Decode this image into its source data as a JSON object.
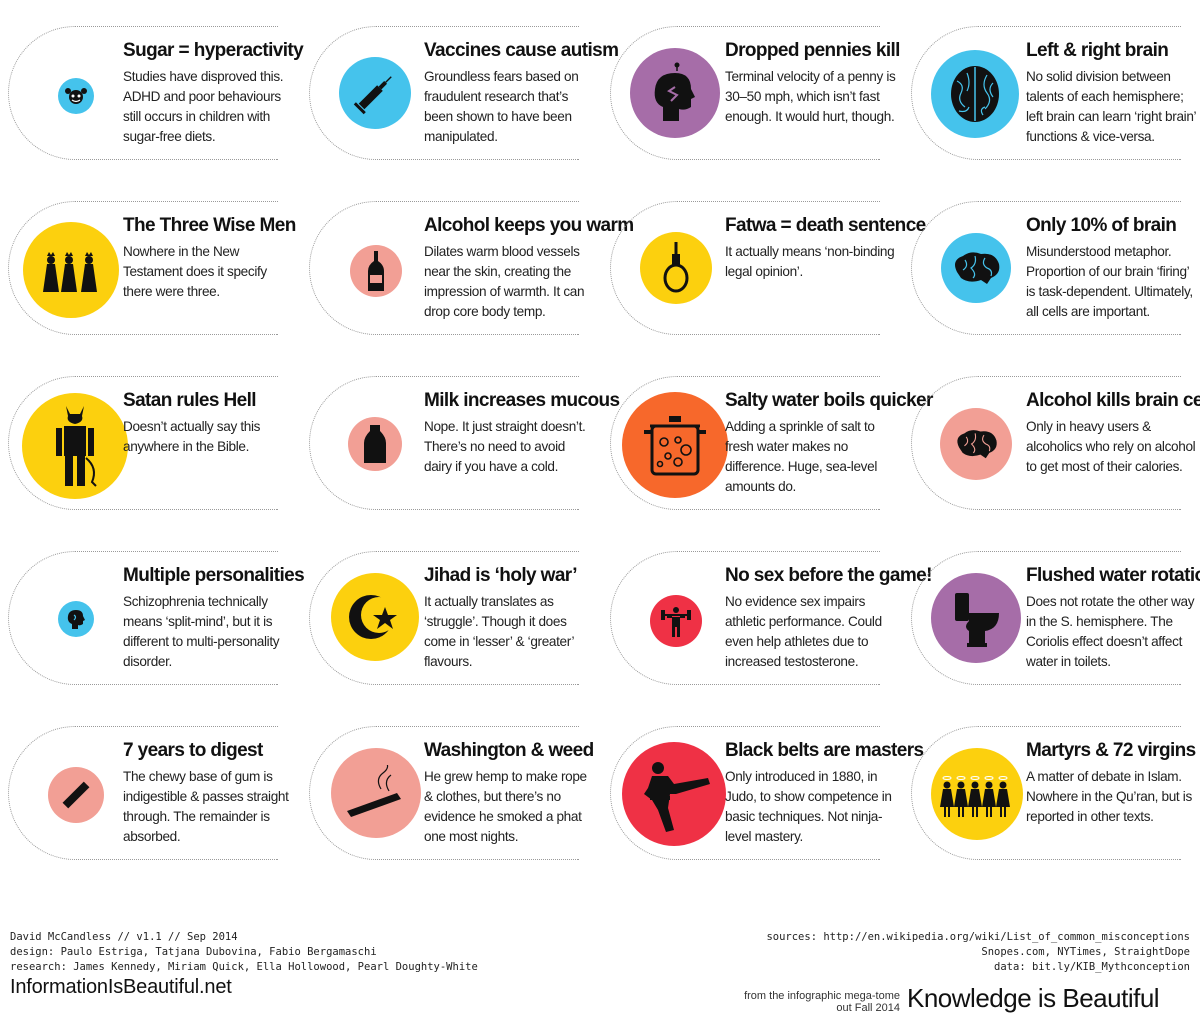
{
  "colors": {
    "blue": "#45c3ec",
    "purple": "#a66da8",
    "yellow": "#fcd00e",
    "pink": "#f29f95",
    "orange": "#f7682b",
    "red": "#ef3145"
  },
  "cards": [
    {
      "title": "Sugar = hyperactivity",
      "text": "Studies have disproved this. ADHD and poor behaviours still occurs in children with sugar-free diets.",
      "icon": "hyperactive-face-icon",
      "color": "#45c3ec"
    },
    {
      "title": "Vaccines cause autism",
      "text": "Groundless fears based on fraudulent research that’s been shown to have been manipulated.",
      "icon": "syringe-icon",
      "color": "#45c3ec"
    },
    {
      "title": "Dropped pennies kill",
      "text": "Terminal velocity of a penny is 30–50 mph, which isn’t fast enough. It would hurt, though.",
      "icon": "head-penny-icon",
      "color": "#a66da8"
    },
    {
      "title": "Left & right brain",
      "text": "No solid division between talents of each hemisphere; left brain can learn ‘right brain’ functions & vice-versa.",
      "icon": "brain-top-icon",
      "color": "#45c3ec"
    },
    {
      "title": "The Three Wise Men",
      "text": "Nowhere in the New Testament does it specify there were three.",
      "icon": "three-kings-icon",
      "color": "#fcd00e"
    },
    {
      "title": "Alcohol keeps you warm",
      "text": "Dilates warm blood vessels near the skin, creating the impression of warmth. It can drop core body temp.",
      "icon": "bottle-icon",
      "color": "#f29f95"
    },
    {
      "title": "Fatwa = death sentence",
      "text": "It actually means ‘non-binding legal opinion’.",
      "icon": "noose-icon",
      "color": "#fcd00e"
    },
    {
      "title": "Only 10% of brain",
      "text": "Misunderstood metaphor. Proportion of our brain ‘firing’ is task-dependent. Ultimately, all cells are important.",
      "icon": "brain-side-icon",
      "color": "#45c3ec"
    },
    {
      "title": "Satan rules Hell",
      "text": "Doesn’t actually say this anywhere in the Bible.",
      "icon": "devil-icon",
      "color": "#fcd00e"
    },
    {
      "title": "Milk increases mucous",
      "text": "Nope. It just straight doesn’t. There’s no need to avoid dairy if you have a cold.",
      "icon": "milk-bottle-icon",
      "color": "#f29f95"
    },
    {
      "title": "Salty water boils quicker",
      "text": "Adding a sprinkle of salt to fresh water makes no difference. Huge, sea-level amounts do.",
      "icon": "boiling-pot-icon",
      "color": "#f7682b"
    },
    {
      "title": "Alcohol kills brain cells",
      "text": "Only in heavy users & alcoholics who rely on alcohol to get most of their calories.",
      "icon": "brain-icon",
      "color": "#f29f95"
    },
    {
      "title": "Multiple personalities",
      "text": "Schizophrenia technically means ‘split-mind’, but it is different to multi-personality disorder.",
      "icon": "head-profiles-icon",
      "color": "#45c3ec"
    },
    {
      "title": "Jihad is ‘holy war’",
      "text": "It actually translates as ‘struggle’. Though it does come in ‘lesser’ & ‘greater’ flavours.",
      "icon": "crescent-star-icon",
      "color": "#fcd00e"
    },
    {
      "title": "No sex before the game!",
      "text": "No evidence sex impairs athletic performance. Could even help athletes due to increased testosterone.",
      "icon": "weightlifter-icon",
      "color": "#ef3145"
    },
    {
      "title": "Flushed water rotation",
      "text": "Does not rotate the other way in the S. hemisphere. The Coriolis effect doesn’t affect water in toilets.",
      "icon": "toilet-icon",
      "color": "#a66da8"
    },
    {
      "title": "7 years to digest",
      "text": "The chewy base of gum is indigestible & passes straight through. The remainder is absorbed.",
      "icon": "gum-stick-icon",
      "color": "#f29f95"
    },
    {
      "title": "Washington & weed",
      "text": "He grew hemp to make rope & clothes, but there’s no evidence he smoked a phat one most nights.",
      "icon": "joint-icon",
      "color": "#f29f95"
    },
    {
      "title": "Black belts are masters",
      "text": "Only introduced in 1880, in Judo, to show competence in basic techniques. Not ninja-level mastery.",
      "icon": "martial-artist-icon",
      "color": "#ef3145"
    },
    {
      "title": "Martyrs & 72 virgins",
      "text": "A matter of debate in Islam. Nowhere in the Qu’ran, but is reported in other texts.",
      "icon": "virgins-row-icon",
      "color": "#fcd00e"
    }
  ],
  "footer": {
    "credit_line1": "David McCandless // v1.1 // Sep 2014",
    "credit_line2": "design: Paulo Estriga, Tatjana Dubovina, Fabio Bergamaschi",
    "credit_line3": "research: James Kennedy, Miriam Quick, Ella Hollowood, Pearl Doughty-White",
    "brand": "InformationIsBeautiful.net",
    "sources_line1": "sources: http://en.wikipedia.org/wiki/List_of_common_misconceptions",
    "sources_line2": "Snopes.com, NYTimes, StraightDope",
    "sources_line3": "data: bit.ly/KIB_Mythconception",
    "book_note1": "from the infographic mega-tome",
    "book_note2": "out Fall 2014",
    "book_title": "Knowledge is Beautiful"
  }
}
